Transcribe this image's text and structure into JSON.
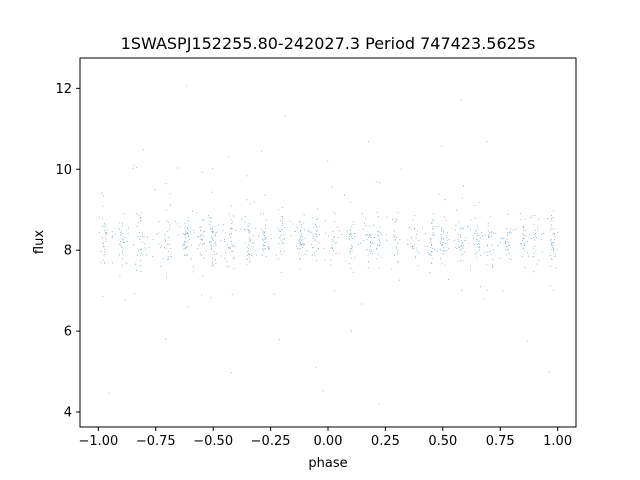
{
  "chart_data": {
    "type": "scatter",
    "title": "1SWASPJ152255.80-242027.3 Period 747423.5625s",
    "xlabel": "phase",
    "ylabel": "flux",
    "xlim": [
      -1.08,
      1.08
    ],
    "ylim": [
      3.63,
      12.75
    ],
    "x_ticks": [
      -1.0,
      -0.75,
      -0.5,
      -0.25,
      0.0,
      0.25,
      0.5,
      0.75,
      1.0
    ],
    "x_tick_labels": [
      "−1.00",
      "−0.75",
      "−0.50",
      "−0.25",
      "0.00",
      "0.25",
      "0.50",
      "0.75",
      "1.00"
    ],
    "y_ticks": [
      4,
      6,
      8,
      10,
      12
    ],
    "y_tick_labels": [
      "4",
      "6",
      "8",
      "10",
      "12"
    ],
    "grid": false,
    "legend": "none",
    "point_color": "#1f77b4",
    "series": [
      {
        "phase_range": [
          -1.0,
          1.0
        ],
        "median_flux": 8.25,
        "typical_flux_range": [
          7.3,
          9.2
        ],
        "outlier_flux_range": [
          4.0,
          12.4
        ],
        "dense_phase_bands": [
          -0.98,
          -0.9,
          -0.82,
          -0.7,
          -0.62,
          -0.55,
          -0.5,
          -0.42,
          -0.35,
          -0.28,
          -0.2,
          -0.12,
          -0.05,
          0.02,
          0.1,
          0.18,
          0.22,
          0.3,
          0.38,
          0.45,
          0.5,
          0.58,
          0.65,
          0.7,
          0.78,
          0.85,
          0.9,
          0.98
        ]
      }
    ]
  }
}
